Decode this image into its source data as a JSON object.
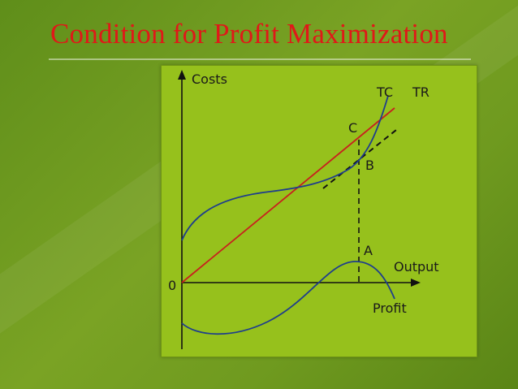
{
  "slide": {
    "title": "Condition for Profit Maximization",
    "title_color": "#e01818",
    "panel_color": "#96c11c"
  },
  "diagram": {
    "y_axis_label": "Costs",
    "x_axis_label": "Output",
    "origin_label": "0",
    "tc_label": "TC",
    "tr_label": "TR",
    "point_c_label": "C",
    "point_b_label": "B",
    "point_a_label": "A",
    "profit_label": "Profit",
    "colors": {
      "tr_line": "#c8201e",
      "tc_curve": "#1f3e8c",
      "profit_curve": "#1f3e8c",
      "axes": "#111111",
      "dashed": "#111111"
    }
  }
}
